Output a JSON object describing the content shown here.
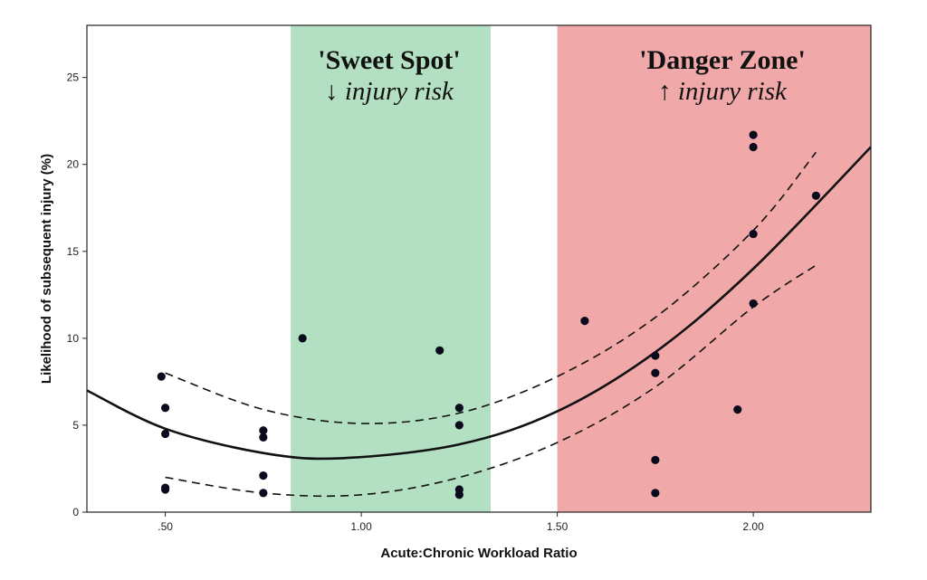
{
  "chart_data": {
    "type": "scatter",
    "xlabel": "Acute:Chronic Workload Ratio",
    "ylabel": "Likelihood of subsequent injury (%)",
    "xlim": [
      0.3,
      2.3
    ],
    "ylim": [
      0,
      28
    ],
    "x_ticks": [
      0.5,
      1.0,
      1.5,
      2.0
    ],
    "x_tick_labels": [
      ".50",
      "1.00",
      "1.50",
      "2.00"
    ],
    "y_ticks": [
      0,
      5,
      10,
      15,
      20,
      25
    ],
    "y_tick_labels": [
      "0",
      "5",
      "10",
      "15",
      "20",
      "25"
    ],
    "grid": false,
    "zones": [
      {
        "title": "'Sweet Spot'",
        "subtitle": "↓ injury risk",
        "x_range": [
          0.82,
          1.33
        ],
        "color": "#b3e0c2"
      },
      {
        "title": "'Danger Zone'",
        "subtitle": "↑ injury risk",
        "x_range": [
          1.5,
          2.3
        ],
        "color": "#f0a8a8"
      }
    ],
    "points": [
      {
        "x": 0.49,
        "y": 7.8
      },
      {
        "x": 0.5,
        "y": 6.0
      },
      {
        "x": 0.5,
        "y": 4.5
      },
      {
        "x": 0.5,
        "y": 1.4
      },
      {
        "x": 0.5,
        "y": 1.3
      },
      {
        "x": 0.75,
        "y": 4.7
      },
      {
        "x": 0.75,
        "y": 4.3
      },
      {
        "x": 0.75,
        "y": 2.1
      },
      {
        "x": 0.75,
        "y": 1.1
      },
      {
        "x": 0.85,
        "y": 10.0
      },
      {
        "x": 1.2,
        "y": 9.3
      },
      {
        "x": 1.25,
        "y": 6.0
      },
      {
        "x": 1.25,
        "y": 5.0
      },
      {
        "x": 1.25,
        "y": 1.3
      },
      {
        "x": 1.25,
        "y": 1.0
      },
      {
        "x": 1.57,
        "y": 11.0
      },
      {
        "x": 1.75,
        "y": 9.0
      },
      {
        "x": 1.75,
        "y": 8.0
      },
      {
        "x": 1.75,
        "y": 3.0
      },
      {
        "x": 1.75,
        "y": 1.1
      },
      {
        "x": 1.96,
        "y": 5.9
      },
      {
        "x": 2.0,
        "y": 21.7
      },
      {
        "x": 2.0,
        "y": 21.0
      },
      {
        "x": 2.0,
        "y": 16.0
      },
      {
        "x": 2.0,
        "y": 12.0
      },
      {
        "x": 2.16,
        "y": 18.2
      }
    ],
    "fit_curve": {
      "x": [
        0.3,
        0.5,
        0.75,
        0.95,
        1.25,
        1.5,
        1.75,
        2.0,
        2.3
      ],
      "y": [
        7.0,
        4.8,
        3.4,
        3.1,
        3.9,
        5.8,
        9.2,
        14.0,
        21.0
      ]
    },
    "upper_band": {
      "x": [
        0.5,
        0.75,
        1.0,
        1.25,
        1.5,
        1.75,
        2.0,
        2.16
      ],
      "y": [
        8.0,
        5.9,
        5.1,
        5.7,
        7.8,
        11.2,
        16.2,
        20.7
      ]
    },
    "lower_band": {
      "x": [
        0.5,
        0.75,
        1.0,
        1.25,
        1.5,
        1.75,
        2.0,
        2.16
      ],
      "y": [
        2.0,
        1.1,
        1.0,
        2.0,
        4.0,
        7.2,
        11.8,
        14.2
      ]
    },
    "colors": {
      "sweet_spot": "#b3e0c2",
      "danger_zone": "#f0a8a8",
      "point": "#0a0a1e",
      "line": "#111111"
    }
  }
}
